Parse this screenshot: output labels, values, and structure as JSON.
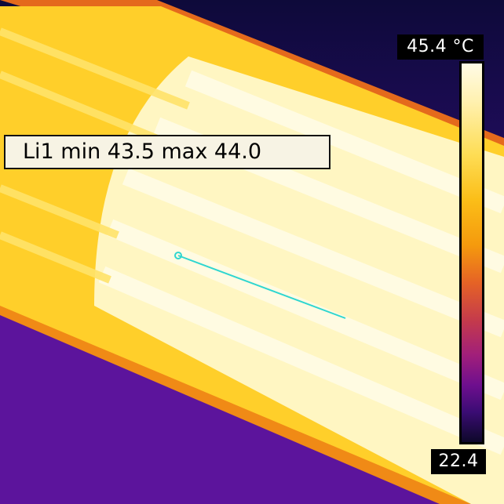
{
  "measurement": {
    "label": "Li1 min 43.5 max 44.0",
    "line_color": "#2fd6d0"
  },
  "temperature_scale": {
    "max_label": "45.4 °C",
    "min_label": "22.4",
    "palette": "iron",
    "colors": {
      "hot": "#fffbe6",
      "warm": "#fbbe18",
      "mid": "#c43a4c",
      "cool": "#6e0f8e",
      "cold": "#0d0829"
    }
  },
  "scene": {
    "colors": {
      "background_top": "#0e0a3a",
      "background_bottom": "#5a1299",
      "object_edge": "#ffd52e",
      "object_body": "#fff6c2",
      "object_core": "#fffde8"
    }
  }
}
